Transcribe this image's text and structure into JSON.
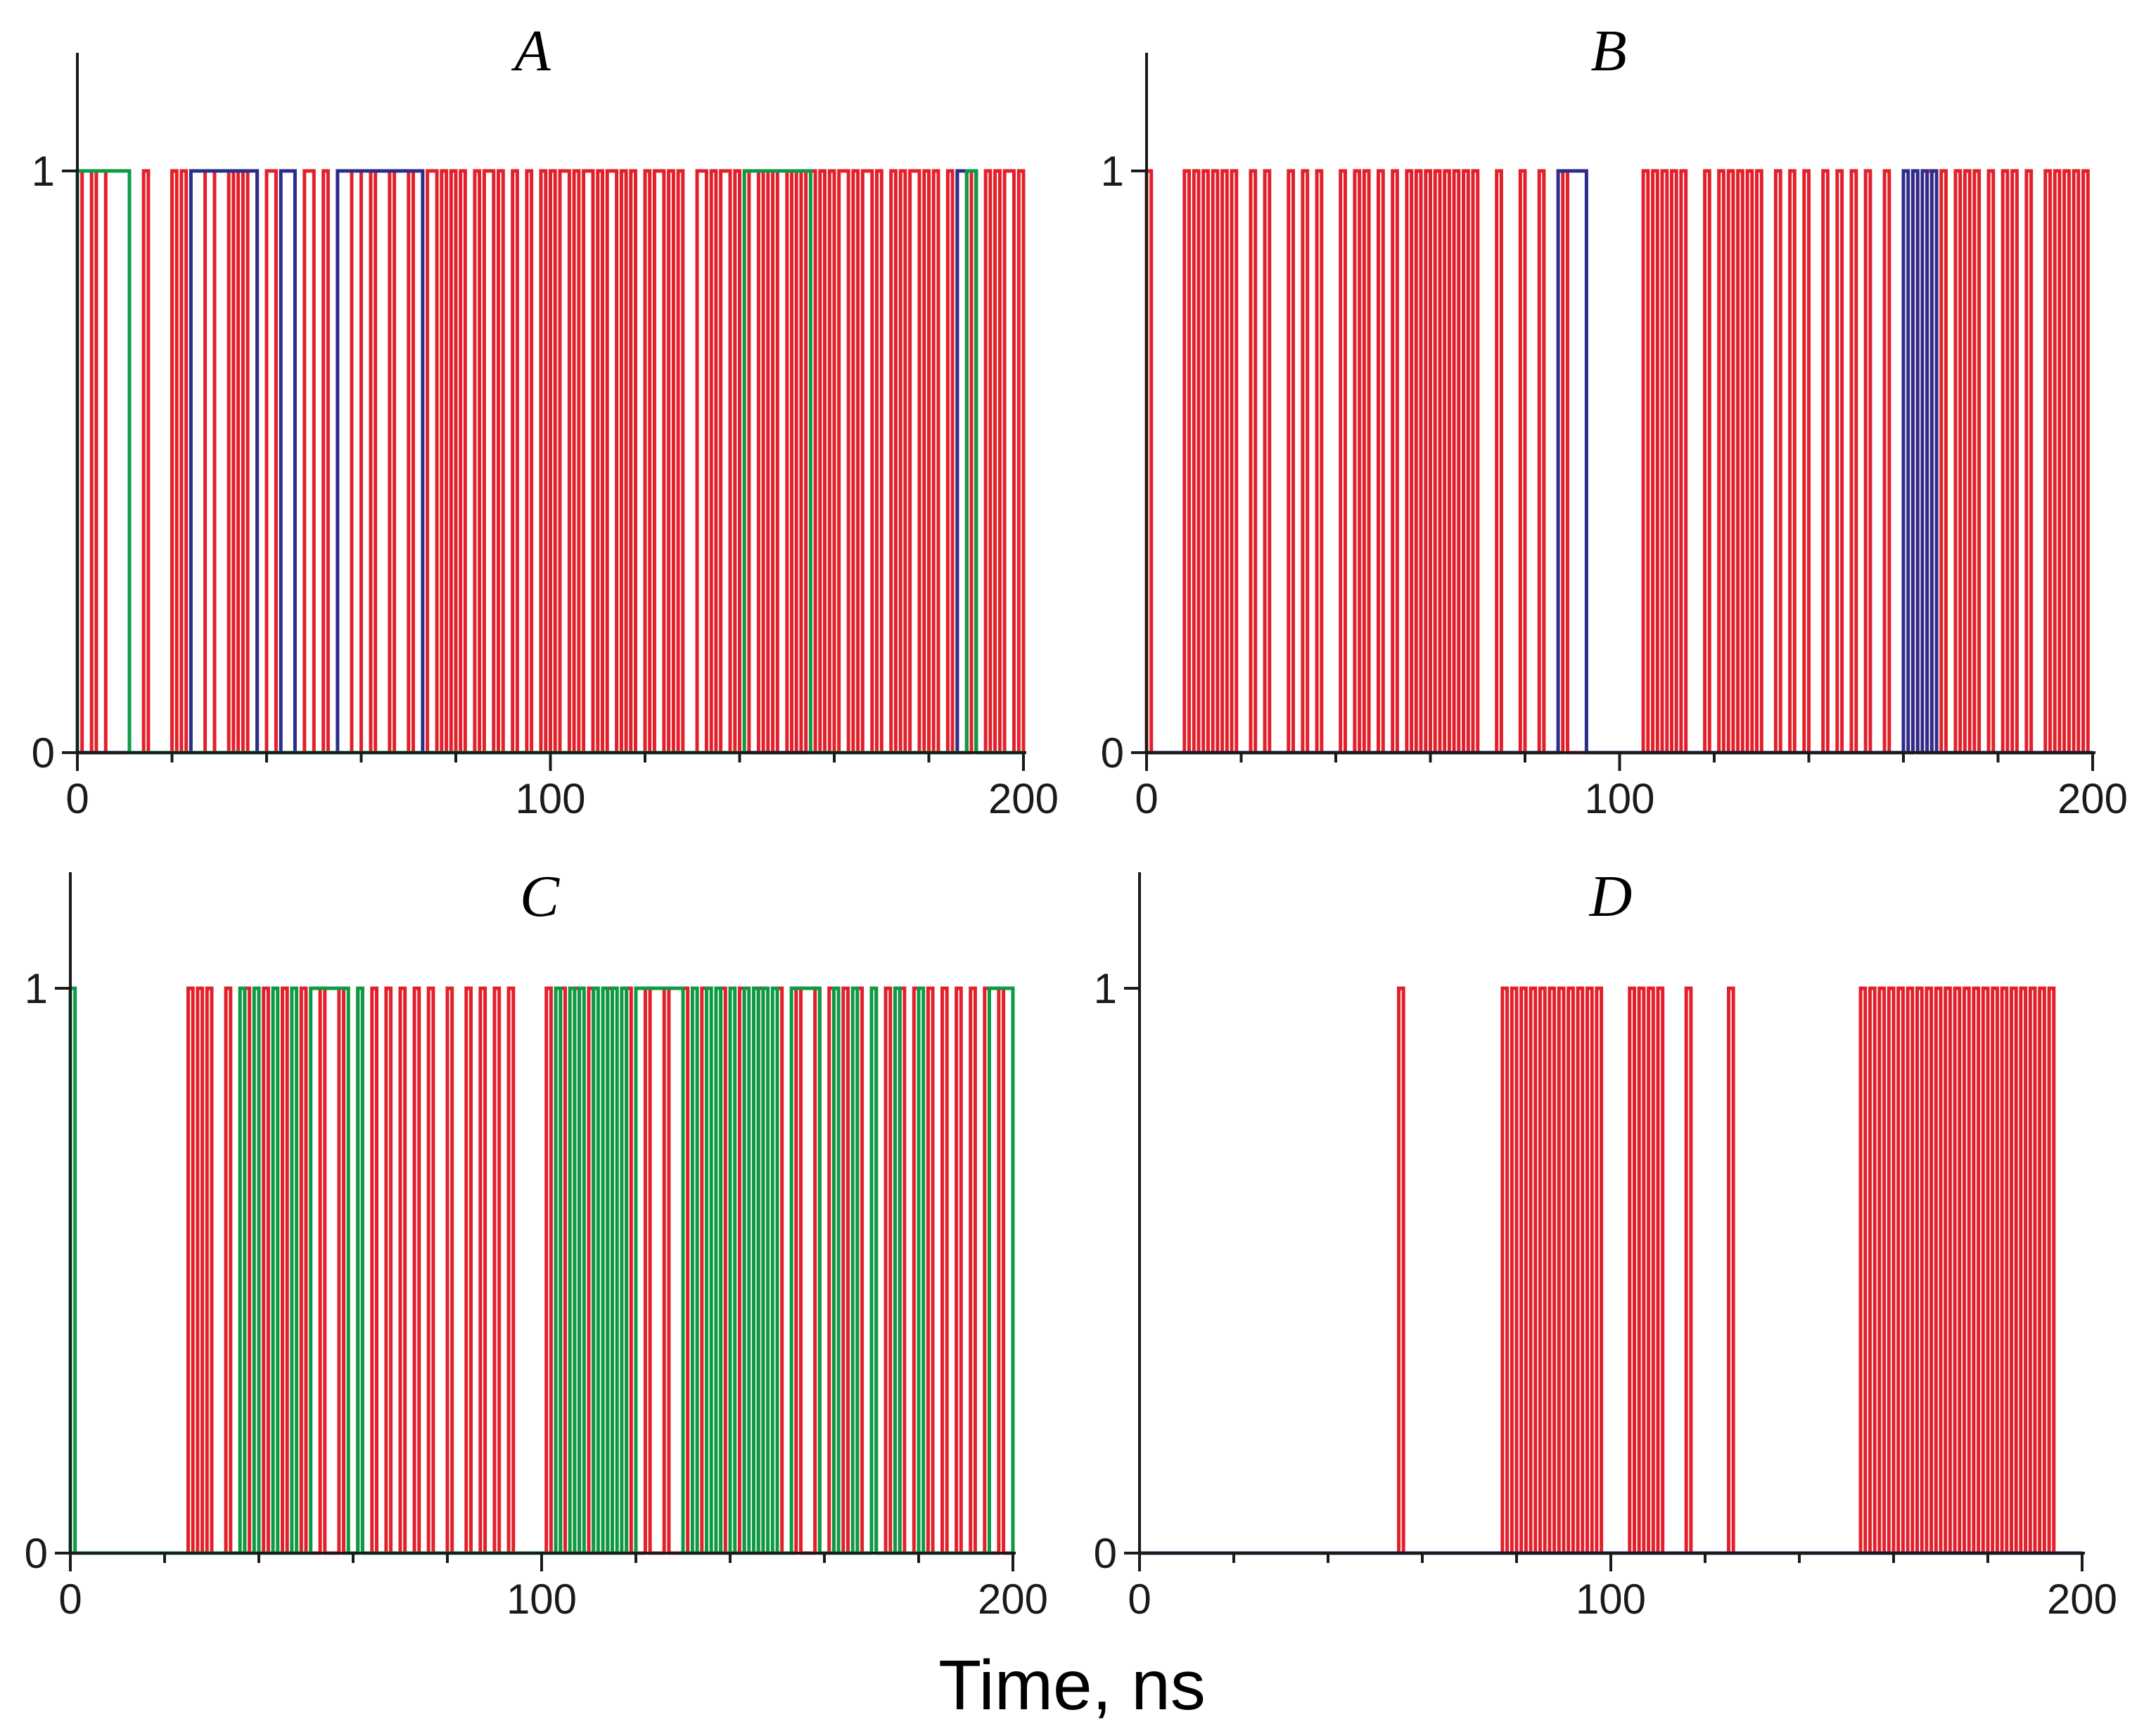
{
  "figure": {
    "xlabel": "Time, ns"
  },
  "colors": {
    "red": "#e3202a",
    "blue": "#2e2c8a",
    "green": "#0c9a44",
    "axis": "#1a1a1a"
  },
  "chart_data": [
    {
      "type": "line",
      "title": "A",
      "xlim": [
        0,
        200
      ],
      "ylim": [
        0,
        1.2
      ],
      "xticks": [
        "0",
        "100",
        "200"
      ],
      "yticks": [
        "0",
        "1"
      ],
      "series": [
        {
          "name": "red",
          "color": "red",
          "style": "binary-switching",
          "on_intervals": [
            [
              1,
              3
            ],
            [
              4,
              6
            ],
            [
              14,
              15
            ],
            [
              20,
              21
            ],
            [
              22,
              23
            ],
            [
              27,
              29
            ],
            [
              32,
              33
            ],
            [
              34,
              35
            ],
            [
              36,
              38
            ],
            [
              40,
              42
            ],
            [
              48,
              50
            ],
            [
              52,
              53
            ],
            [
              58,
              60
            ],
            [
              62,
              63
            ],
            [
              66,
              67
            ],
            [
              70,
              71
            ],
            [
              74,
              76
            ],
            [
              77,
              78
            ],
            [
              79,
              80
            ],
            [
              81,
              82
            ],
            [
              84,
              85
            ],
            [
              86,
              88
            ],
            [
              89,
              90
            ],
            [
              92,
              93
            ],
            [
              95,
              96
            ],
            [
              98,
              99
            ],
            [
              100,
              101
            ],
            [
              102,
              104
            ],
            [
              105,
              106
            ],
            [
              107,
              109
            ],
            [
              110,
              111
            ],
            [
              112,
              114
            ],
            [
              115,
              116
            ],
            [
              117,
              118
            ],
            [
              120,
              121
            ],
            [
              122,
              124
            ],
            [
              125,
              126
            ],
            [
              127,
              128
            ],
            [
              131,
              133
            ],
            [
              134,
              135
            ],
            [
              136,
              138
            ],
            [
              139,
              140
            ],
            [
              142,
              144
            ],
            [
              145,
              146
            ],
            [
              147,
              148
            ],
            [
              150,
              151
            ],
            [
              152,
              153
            ],
            [
              154,
              156
            ],
            [
              157,
              158
            ],
            [
              159,
              160
            ],
            [
              161,
              163
            ],
            [
              164,
              165
            ],
            [
              166,
              168
            ],
            [
              169,
              170
            ],
            [
              172,
              173
            ],
            [
              174,
              175
            ],
            [
              176,
              178
            ],
            [
              179,
              180
            ],
            [
              181,
              182
            ],
            [
              184,
              185
            ],
            [
              186,
              188
            ],
            [
              189,
              190
            ],
            [
              192,
              193
            ],
            [
              194,
              195
            ],
            [
              196,
              198
            ],
            [
              199,
              200
            ]
          ]
        },
        {
          "name": "blue",
          "color": "blue",
          "style": "binary-switching",
          "on_intervals": [
            [
              24,
              38
            ],
            [
              43,
              46
            ],
            [
              55,
              73
            ],
            [
              186,
              190
            ]
          ]
        },
        {
          "name": "green",
          "color": "green",
          "style": "binary-switching",
          "on_intervals": [
            [
              0,
              11
            ],
            [
              141,
              155
            ],
            [
              188,
              190
            ]
          ]
        }
      ]
    },
    {
      "type": "line",
      "title": "B",
      "xlim": [
        0,
        200
      ],
      "ylim": [
        0,
        1.2
      ],
      "xticks": [
        "0",
        "100",
        "200"
      ],
      "yticks": [
        "0",
        "1"
      ],
      "series": [
        {
          "name": "red",
          "color": "red",
          "style": "binary-switching",
          "on_intervals": [
            [
              0,
              1
            ],
            [
              8,
              9
            ],
            [
              10,
              11
            ],
            [
              12,
              13
            ],
            [
              14,
              15
            ],
            [
              16,
              17
            ],
            [
              18,
              19
            ],
            [
              22,
              23
            ],
            [
              25,
              26
            ],
            [
              30,
              31
            ],
            [
              33,
              34
            ],
            [
              36,
              37
            ],
            [
              41,
              42
            ],
            [
              44,
              45
            ],
            [
              46,
              47
            ],
            [
              49,
              50
            ],
            [
              52,
              53
            ],
            [
              55,
              56
            ],
            [
              57,
              58
            ],
            [
              59,
              60
            ],
            [
              61,
              62
            ],
            [
              63,
              64
            ],
            [
              65,
              66
            ],
            [
              67,
              68
            ],
            [
              69,
              70
            ],
            [
              74,
              75
            ],
            [
              79,
              80
            ],
            [
              83,
              84
            ],
            [
              88,
              89
            ],
            [
              105,
              106
            ],
            [
              107,
              108
            ],
            [
              109,
              110
            ],
            [
              111,
              112
            ],
            [
              113,
              114
            ],
            [
              118,
              119
            ],
            [
              121,
              122
            ],
            [
              123,
              124
            ],
            [
              125,
              126
            ],
            [
              127,
              128
            ],
            [
              129,
              130
            ],
            [
              133,
              134
            ],
            [
              136,
              137
            ],
            [
              139,
              140
            ],
            [
              143,
              144
            ],
            [
              146,
              147
            ],
            [
              149,
              150
            ],
            [
              152,
              153
            ],
            [
              156,
              157
            ],
            [
              162,
              163
            ],
            [
              165,
              166
            ],
            [
              168,
              169
            ],
            [
              171,
              172
            ],
            [
              173,
              174
            ],
            [
              175,
              176
            ],
            [
              178,
              179
            ],
            [
              181,
              182
            ],
            [
              183,
              184
            ],
            [
              186,
              187
            ],
            [
              190,
              191
            ],
            [
              192,
              193
            ],
            [
              194,
              195
            ],
            [
              196,
              197
            ],
            [
              198,
              199
            ]
          ]
        },
        {
          "name": "blue",
          "color": "blue",
          "style": "binary-switching",
          "on_intervals": [
            [
              87,
              93
            ],
            [
              160,
              161
            ],
            [
              162,
              163
            ],
            [
              164,
              165
            ],
            [
              166,
              167
            ]
          ]
        }
      ]
    },
    {
      "type": "line",
      "title": "C",
      "xlim": [
        0,
        200
      ],
      "ylim": [
        0,
        1.2
      ],
      "xticks": [
        "0",
        "100",
        "200"
      ],
      "yticks": [
        "0",
        "1"
      ],
      "series": [
        {
          "name": "red",
          "color": "red",
          "style": "binary-switching",
          "on_intervals": [
            [
              25,
              26
            ],
            [
              27,
              28
            ],
            [
              29,
              30
            ],
            [
              33,
              34
            ],
            [
              37,
              38
            ],
            [
              41,
              42
            ],
            [
              45,
              46
            ],
            [
              49,
              50
            ],
            [
              53,
              54
            ],
            [
              57,
              58
            ],
            [
              61,
              62
            ],
            [
              64,
              65
            ],
            [
              67,
              68
            ],
            [
              70,
              71
            ],
            [
              73,
              74
            ],
            [
              76,
              77
            ],
            [
              80,
              81
            ],
            [
              84,
              85
            ],
            [
              87,
              88
            ],
            [
              90,
              91
            ],
            [
              93,
              94
            ],
            [
              101,
              102
            ],
            [
              104,
              105
            ],
            [
              107,
              108
            ],
            [
              110,
              111
            ],
            [
              114,
              115
            ],
            [
              118,
              119
            ],
            [
              122,
              123
            ],
            [
              126,
              127
            ],
            [
              130,
              131
            ],
            [
              134,
              135
            ],
            [
              138,
              139
            ],
            [
              142,
              143
            ],
            [
              146,
              147
            ],
            [
              150,
              151
            ],
            [
              154,
              155
            ],
            [
              158,
              159
            ],
            [
              161,
              162
            ],
            [
              164,
              165
            ],
            [
              167,
              168
            ],
            [
              170,
              171
            ],
            [
              173,
              174
            ],
            [
              176,
              177
            ],
            [
              179,
              180
            ],
            [
              182,
              183
            ],
            [
              185,
              186
            ],
            [
              188,
              189
            ],
            [
              191,
              192
            ],
            [
              194,
              195
            ],
            [
              197,
              198
            ]
          ]
        },
        {
          "name": "green",
          "color": "green",
          "style": "binary-switching",
          "on_intervals": [
            [
              0,
              1
            ],
            [
              36,
              37
            ],
            [
              39,
              40
            ],
            [
              43,
              44
            ],
            [
              47,
              48
            ],
            [
              51,
              59
            ],
            [
              61,
              62
            ],
            [
              103,
              104
            ],
            [
              106,
              107
            ],
            [
              108,
              109
            ],
            [
              111,
              112
            ],
            [
              113,
              114
            ],
            [
              115,
              116
            ],
            [
              117,
              118
            ],
            [
              120,
              130
            ],
            [
              132,
              133
            ],
            [
              135,
              136
            ],
            [
              137,
              138
            ],
            [
              140,
              141
            ],
            [
              143,
              144
            ],
            [
              145,
              146
            ],
            [
              147,
              148
            ],
            [
              149,
              150
            ],
            [
              153,
              159
            ],
            [
              162,
              163
            ],
            [
              166,
              167
            ],
            [
              170,
              171
            ],
            [
              175,
              176
            ],
            [
              180,
              181
            ],
            [
              195,
              200
            ]
          ]
        }
      ]
    },
    {
      "type": "line",
      "title": "D",
      "xlim": [
        0,
        200
      ],
      "ylim": [
        0,
        1.2
      ],
      "xticks": [
        "0",
        "100",
        "200"
      ],
      "yticks": [
        "0",
        "1"
      ],
      "series": [
        {
          "name": "red",
          "color": "red",
          "style": "binary-switching",
          "on_intervals": [
            [
              55,
              56
            ],
            [
              77,
              78
            ],
            [
              79,
              80
            ],
            [
              81,
              82
            ],
            [
              83,
              84
            ],
            [
              85,
              86
            ],
            [
              87,
              88
            ],
            [
              89,
              90
            ],
            [
              91,
              92
            ],
            [
              93,
              94
            ],
            [
              95,
              96
            ],
            [
              97,
              98
            ],
            [
              104,
              105
            ],
            [
              106,
              107
            ],
            [
              108,
              109
            ],
            [
              110,
              111
            ],
            [
              116,
              117
            ],
            [
              125,
              126
            ],
            [
              153,
              154
            ],
            [
              155,
              156
            ],
            [
              157,
              158
            ],
            [
              159,
              160
            ],
            [
              161,
              162
            ],
            [
              163,
              164
            ],
            [
              165,
              166
            ],
            [
              167,
              168
            ],
            [
              169,
              170
            ],
            [
              171,
              172
            ],
            [
              173,
              174
            ],
            [
              175,
              176
            ],
            [
              177,
              178
            ],
            [
              179,
              180
            ],
            [
              181,
              182
            ],
            [
              183,
              184
            ],
            [
              185,
              186
            ],
            [
              187,
              188
            ],
            [
              189,
              190
            ],
            [
              191,
              192
            ],
            [
              193,
              194
            ]
          ]
        },
        {
          "name": "blue",
          "color": "blue",
          "style": "baseline",
          "on_intervals": []
        }
      ]
    }
  ]
}
